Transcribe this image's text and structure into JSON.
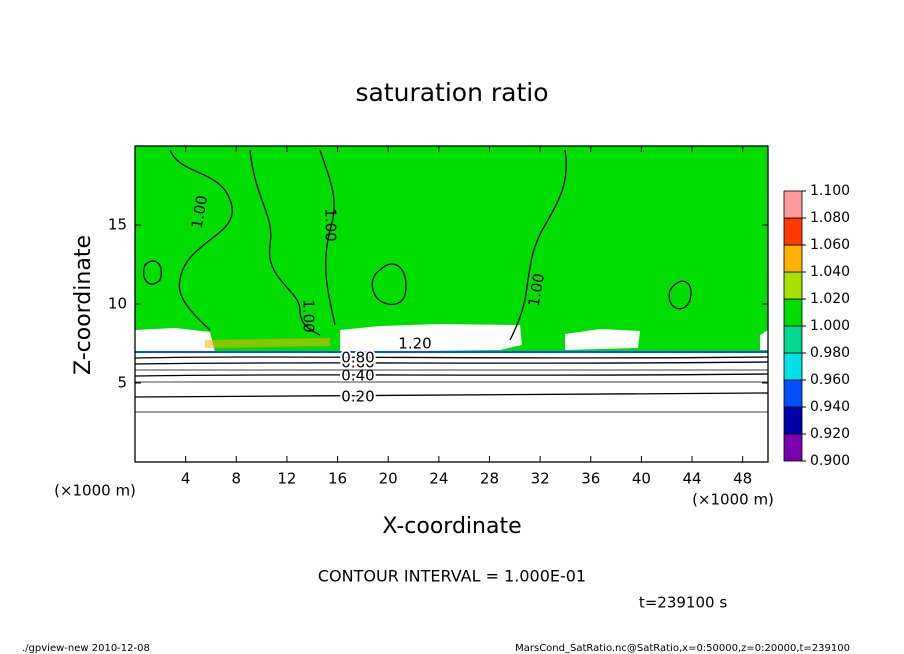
{
  "chart_data": {
    "type": "contour",
    "title": "saturation ratio",
    "xlabel": "X-coordinate",
    "ylabel": "Z-coordinate",
    "x_unit": "(×1000 m)",
    "y_unit": "(×1000 m)",
    "xlim": [
      0,
      50
    ],
    "ylim": [
      0,
      20
    ],
    "xticks": [
      4,
      8,
      12,
      16,
      20,
      24,
      28,
      32,
      36,
      40,
      44,
      48
    ],
    "yticks": [
      5,
      10,
      15
    ],
    "contours": [
      {
        "value": 0.2,
        "label": "0.20"
      },
      {
        "value": 0.4,
        "label": "0.40"
      },
      {
        "value": 0.6,
        "label": "0.60"
      },
      {
        "value": 0.8,
        "label": "0.80"
      },
      {
        "value": 1,
        "label": "1.00"
      },
      {
        "value": 1.2,
        "label": "1.20"
      }
    ],
    "colorbar": {
      "clim": [
        0.9,
        1.1
      ],
      "levels": [
        {
          "value": 0.9,
          "label": "0.900"
        },
        {
          "value": 0.92,
          "label": "0.920"
        },
        {
          "value": 0.94,
          "label": "0.940"
        },
        {
          "value": 0.96,
          "label": "0.960"
        },
        {
          "value": 0.98,
          "label": "0.980"
        },
        {
          "value": 1,
          "label": "1.000"
        },
        {
          "value": 1.02,
          "label": "1.020"
        },
        {
          "value": 1.04,
          "label": "1.040"
        },
        {
          "value": 1.06,
          "label": "1.060"
        },
        {
          "value": 1.08,
          "label": "1.080"
        },
        {
          "value": 1.1,
          "label": "1.100"
        }
      ],
      "colors": [
        "#7a00b0",
        "#0000a8",
        "#0050ff",
        "#00e0e8",
        "#00d890",
        "#00dd00",
        "#a8e000",
        "#ffb000",
        "#ff3a00",
        "#ff9a9a"
      ]
    },
    "contour_interval": "CONTOUR INTERVAL = 1.000E-01",
    "time": "t=239100 s",
    "footer_left": "./gpview-new  2010-12-08",
    "footer_right": "MarsCond_SatRatio.nc@SatRatio,x=0:50000,z=0:20000,t=239100"
  }
}
